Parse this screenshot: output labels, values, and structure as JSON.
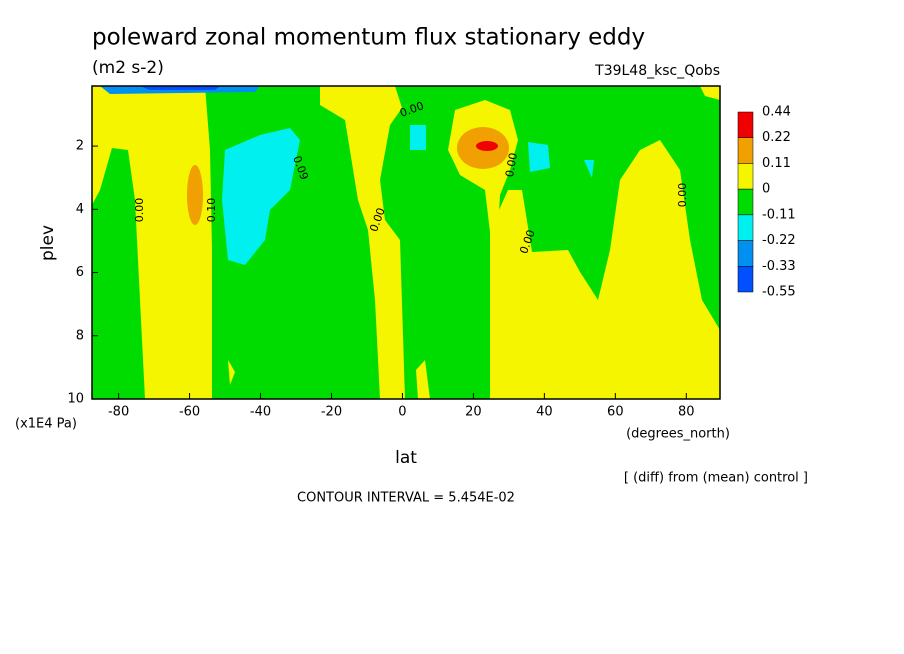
{
  "chart_data": {
    "type": "contour",
    "title": "poleward zonal momentum flux stationary eddy",
    "subtitle": "(m2 s-2)",
    "run_label": "T39L48_ksc_Qobs",
    "x_label": "lat",
    "x_units": "(degrees_north)",
    "y_label": "plev",
    "y_units": "(x1E4 Pa)",
    "xlim": [
      -87.5,
      89.5
    ],
    "xticks": [
      -80,
      -60,
      -40,
      -20,
      0,
      20,
      40,
      60,
      80
    ],
    "ylim": [
      10,
      0.1
    ],
    "yticks": [
      2,
      4,
      6,
      8,
      10
    ],
    "levels": [
      0.44,
      0.22,
      0.11,
      0,
      -0.11,
      -0.22,
      -0.33,
      -0.55
    ],
    "colors": [
      "#f00000",
      "#f0a000",
      "#f5f500",
      "#00dc00",
      "#00f0f0",
      "#0090f0",
      "#0050ff"
    ],
    "contour_labels": [
      "0.00",
      "0.10",
      "0.09",
      "0.00",
      "0.00",
      "0.00",
      "0.00",
      "0.00"
    ],
    "note": "[ (diff) from (mean) control ]",
    "contour_interval": "CONTOUR INTERVAL = 5.454E-02"
  }
}
